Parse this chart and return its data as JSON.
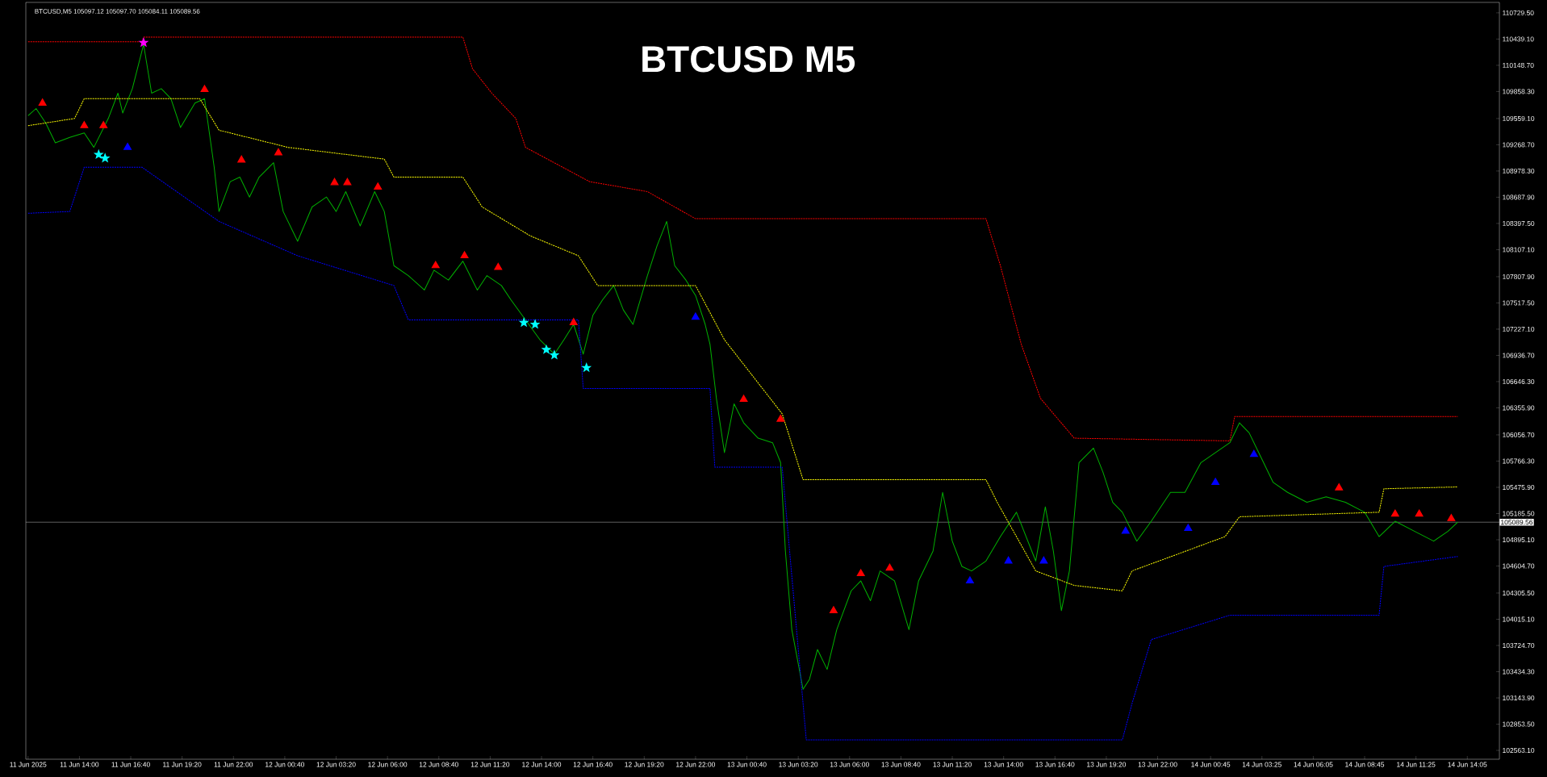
{
  "chart_data": {
    "type": "line",
    "title": "BTCUSD M5",
    "annotations": [
      "BTCUSD,M5  105097.12 105097.70 105084.11 105089.56"
    ],
    "xlim": [
      "2025-06-11T11:13",
      "2025-06-14T15:45"
    ],
    "ylim": [
      102465,
      110845
    ],
    "xticks": [
      {
        "value": "2025-06-11T11:20",
        "label": "11 Jun 2025"
      },
      {
        "value": "2025-06-11T14:00",
        "label": "11 Jun 14:00"
      },
      {
        "value": "2025-06-11T16:40",
        "label": "11 Jun 16:40"
      },
      {
        "value": "2025-06-11T19:20",
        "label": "11 Jun 19:20"
      },
      {
        "value": "2025-06-11T22:00",
        "label": "11 Jun 22:00"
      },
      {
        "value": "2025-06-12T00:40",
        "label": "12 Jun 00:40"
      },
      {
        "value": "2025-06-12T03:20",
        "label": "12 Jun 03:20"
      },
      {
        "value": "2025-06-12T06:00",
        "label": "12 Jun 06:00"
      },
      {
        "value": "2025-06-12T08:40",
        "label": "12 Jun 08:40"
      },
      {
        "value": "2025-06-12T11:20",
        "label": "12 Jun 11:20"
      },
      {
        "value": "2025-06-12T14:00",
        "label": "12 Jun 14:00"
      },
      {
        "value": "2025-06-12T16:40",
        "label": "12 Jun 16:40"
      },
      {
        "value": "2025-06-12T19:20",
        "label": "12 Jun 19:20"
      },
      {
        "value": "2025-06-12T22:00",
        "label": "12 Jun 22:00"
      },
      {
        "value": "2025-06-13T00:40",
        "label": "13 Jun 00:40"
      },
      {
        "value": "2025-06-13T03:20",
        "label": "13 Jun 03:20"
      },
      {
        "value": "2025-06-13T06:00",
        "label": "13 Jun 06:00"
      },
      {
        "value": "2025-06-13T08:40",
        "label": "13 Jun 08:40"
      },
      {
        "value": "2025-06-13T11:20",
        "label": "13 Jun 11:20"
      },
      {
        "value": "2025-06-13T14:00",
        "label": "13 Jun 14:00"
      },
      {
        "value": "2025-06-13T16:40",
        "label": "13 Jun 16:40"
      },
      {
        "value": "2025-06-13T19:20",
        "label": "13 Jun 19:20"
      },
      {
        "value": "2025-06-13T22:00",
        "label": "13 Jun 22:00"
      },
      {
        "value": "2025-06-14T00:45",
        "label": "14 Jun 00:45"
      },
      {
        "value": "2025-06-14T03:25",
        "label": "14 Jun 03:25"
      },
      {
        "value": "2025-06-14T06:05",
        "label": "14 Jun 06:05"
      },
      {
        "value": "2025-06-14T08:45",
        "label": "14 Jun 08:45"
      },
      {
        "value": "2025-06-14T11:25",
        "label": "14 Jun 11:25"
      },
      {
        "value": "2025-06-14T14:05",
        "label": "14 Jun 14:05"
      }
    ],
    "yticks": [
      {
        "value": 110729.5,
        "label": "110729.50"
      },
      {
        "value": 110439.1,
        "label": "110439.10"
      },
      {
        "value": 110148.7,
        "label": "110148.70"
      },
      {
        "value": 109858.3,
        "label": "109858.30"
      },
      {
        "value": 109559.1,
        "label": "109559.10"
      },
      {
        "value": 109268.7,
        "label": "109268.70"
      },
      {
        "value": 108978.3,
        "label": "108978.30"
      },
      {
        "value": 108687.9,
        "label": "108687.90"
      },
      {
        "value": 108397.5,
        "label": "108397.50"
      },
      {
        "value": 108107.1,
        "label": "108107.10"
      },
      {
        "value": 107807.9,
        "label": "107807.90"
      },
      {
        "value": 107517.5,
        "label": "107517.50"
      },
      {
        "value": 107227.1,
        "label": "107227.10"
      },
      {
        "value": 106936.7,
        "label": "106936.70"
      },
      {
        "value": 106646.3,
        "label": "106646.30"
      },
      {
        "value": 106355.9,
        "label": "106355.90"
      },
      {
        "value": 106056.7,
        "label": "106056.70"
      },
      {
        "value": 105766.3,
        "label": "105766.30"
      },
      {
        "value": 105475.9,
        "label": "105475.90"
      },
      {
        "value": 105185.5,
        "label": "105185.50"
      },
      {
        "value": 104895.1,
        "label": "104895.10"
      },
      {
        "value": 104604.7,
        "label": "104604.70"
      },
      {
        "value": 104305.5,
        "label": "104305.50"
      },
      {
        "value": 104015.1,
        "label": "104015.10"
      },
      {
        "value": 103724.7,
        "label": "103724.70"
      },
      {
        "value": 103434.3,
        "label": "103434.30"
      },
      {
        "value": 103143.9,
        "label": "103143.90"
      },
      {
        "value": 102853.5,
        "label": "102853.50"
      },
      {
        "value": 102563.1,
        "label": "102563.10"
      }
    ],
    "grid": false,
    "ref_lines": [
      {
        "axis": "y",
        "value": 105089.56,
        "label": "105089.56",
        "color": "#a0a0a0"
      }
    ],
    "series": [
      {
        "color": "#00b000",
        "line_style": "solid",
        "marker": "none",
        "x": [
          "2025-06-11T11:20",
          "2025-06-11T11:45",
          "2025-06-11T12:15",
          "2025-06-11T12:45",
          "2025-06-11T13:30",
          "2025-06-11T14:15",
          "2025-06-11T14:45",
          "2025-06-11T15:30",
          "2025-06-11T16:00",
          "2025-06-11T16:15",
          "2025-06-11T16:45",
          "2025-06-11T17:20",
          "2025-06-11T17:45",
          "2025-06-11T18:15",
          "2025-06-11T18:45",
          "2025-06-11T19:15",
          "2025-06-11T20:00",
          "2025-06-11T20:30",
          "2025-06-11T21:00",
          "2025-06-11T21:15",
          "2025-06-11T21:50",
          "2025-06-11T22:20",
          "2025-06-11T22:50",
          "2025-06-11T23:20",
          "2025-06-12T00:05",
          "2025-06-12T00:35",
          "2025-06-12T01:20",
          "2025-06-12T02:05",
          "2025-06-12T02:50",
          "2025-06-12T03:20",
          "2025-06-12T03:50",
          "2025-06-12T04:35",
          "2025-06-12T05:20",
          "2025-06-12T05:50",
          "2025-06-12T06:20",
          "2025-06-12T07:05",
          "2025-06-12T07:55",
          "2025-06-12T08:25",
          "2025-06-12T09:10",
          "2025-06-12T09:55",
          "2025-06-12T10:40",
          "2025-06-12T11:10",
          "2025-06-12T11:55",
          "2025-06-12T12:25",
          "2025-06-12T13:10",
          "2025-06-12T13:55",
          "2025-06-12T14:40",
          "2025-06-12T15:10",
          "2025-06-12T15:40",
          "2025-06-12T16:10",
          "2025-06-12T16:40",
          "2025-06-12T17:10",
          "2025-06-12T17:45",
          "2025-06-12T18:15",
          "2025-06-12T18:45",
          "2025-06-12T19:30",
          "2025-06-12T20:00",
          "2025-06-12T20:30",
          "2025-06-12T20:55",
          "2025-06-12T21:30",
          "2025-06-12T22:00",
          "2025-06-12T22:30",
          "2025-06-12T22:45",
          "2025-06-12T23:05",
          "2025-06-12T23:30",
          "2025-06-13T00:00",
          "2025-06-13T00:30",
          "2025-06-13T01:15",
          "2025-06-13T02:00",
          "2025-06-13T02:25",
          "2025-06-13T02:40",
          "2025-06-13T03:00",
          "2025-06-13T03:35",
          "2025-06-13T03:55",
          "2025-06-13T04:20",
          "2025-06-13T04:50",
          "2025-06-13T05:20",
          "2025-06-13T06:05",
          "2025-06-13T06:35",
          "2025-06-13T07:05",
          "2025-06-13T07:35",
          "2025-06-13T08:20",
          "2025-06-13T09:05",
          "2025-06-13T09:35",
          "2025-06-13T10:20",
          "2025-06-13T10:50",
          "2025-06-13T11:20",
          "2025-06-13T11:50",
          "2025-06-13T12:20",
          "2025-06-13T13:05",
          "2025-06-13T13:50",
          "2025-06-13T14:40",
          "2025-06-13T15:10",
          "2025-06-13T15:40",
          "2025-06-13T16:10",
          "2025-06-13T16:35",
          "2025-06-13T17:00",
          "2025-06-13T17:25",
          "2025-06-13T17:55",
          "2025-06-13T18:40",
          "2025-06-13T19:10",
          "2025-06-13T19:40",
          "2025-06-13T20:10",
          "2025-06-13T20:55",
          "2025-06-13T21:40",
          "2025-06-13T22:40",
          "2025-06-13T23:25",
          "2025-06-14T00:15",
          "2025-06-14T01:00",
          "2025-06-14T01:45",
          "2025-06-14T02:15",
          "2025-06-14T02:45",
          "2025-06-14T03:15",
          "2025-06-14T04:00",
          "2025-06-14T04:45",
          "2025-06-14T05:45",
          "2025-06-14T06:45",
          "2025-06-14T07:45",
          "2025-06-14T08:45",
          "2025-06-14T09:30",
          "2025-06-14T10:20",
          "2025-06-14T11:20",
          "2025-06-14T12:20",
          "2025-06-14T13:05",
          "2025-06-14T13:35"
        ],
        "values": [
          109590,
          109670,
          109510,
          109290,
          109350,
          109400,
          109240,
          109560,
          109840,
          109620,
          109890,
          110380,
          109840,
          109890,
          109780,
          109460,
          109730,
          109780,
          109020,
          108530,
          108860,
          108910,
          108690,
          108910,
          109070,
          108530,
          108200,
          108580,
          108690,
          108530,
          108750,
          108370,
          108750,
          108530,
          107930,
          107820,
          107660,
          107880,
          107770,
          107980,
          107660,
          107820,
          107710,
          107550,
          107330,
          107110,
          106950,
          107110,
          107280,
          106950,
          107380,
          107550,
          107710,
          107440,
          107280,
          107820,
          108150,
          108420,
          107930,
          107770,
          107600,
          107280,
          107060,
          106460,
          105860,
          106400,
          106190,
          106020,
          105970,
          105750,
          104770,
          103900,
          103240,
          103350,
          103680,
          103460,
          103900,
          104330,
          104440,
          104220,
          104550,
          104440,
          103900,
          104440,
          104770,
          105420,
          104880,
          104600,
          104550,
          104660,
          104930,
          105200,
          104930,
          104660,
          105260,
          104770,
          104110,
          104550,
          105750,
          105910,
          105640,
          105310,
          105200,
          104880,
          105100,
          105420,
          105420,
          105750,
          105860,
          105970,
          106190,
          106080,
          105860,
          105530,
          105420,
          105310,
          105370,
          105310,
          105200,
          104930,
          105100,
          104990,
          104880,
          104990,
          105090
        ]
      },
      {
        "type": "line",
        "color": "#ff0000",
        "line_style": "dotted",
        "marker": "none",
        "x": [
          "2025-06-11T11:20",
          "2025-06-11T17:15",
          "2025-06-11T17:20",
          "2025-06-12T09:55",
          "2025-06-12T10:25",
          "2025-06-12T11:25",
          "2025-06-12T12:40",
          "2025-06-12T13:10",
          "2025-06-12T16:30",
          "2025-06-12T19:30",
          "2025-06-12T22:00",
          "2025-06-13T13:05",
          "2025-06-13T13:50",
          "2025-06-13T14:55",
          "2025-06-13T15:55",
          "2025-06-13T17:40",
          "2025-06-14T01:45",
          "2025-06-14T02:00",
          "2025-06-14T13:35"
        ],
        "values": [
          110410,
          110410,
          110460,
          110460,
          110110,
          109840,
          109560,
          109240,
          108860,
          108750,
          108450,
          108450,
          107930,
          107060,
          106460,
          106020,
          105990,
          106260,
          106260
        ]
      },
      {
        "type": "line",
        "color": "#ffff00",
        "line_style": "dotted",
        "marker": "none",
        "x": [
          "2025-06-11T11:20",
          "2025-06-11T13:45",
          "2025-06-11T14:15",
          "2025-06-11T20:15",
          "2025-06-11T21:15",
          "2025-06-12T00:50",
          "2025-06-12T05:50",
          "2025-06-12T06:20",
          "2025-06-12T09:55",
          "2025-06-12T10:55",
          "2025-06-12T13:25",
          "2025-06-12T15:55",
          "2025-06-12T16:55",
          "2025-06-12T22:00",
          "2025-06-12T23:30",
          "2025-06-13T02:30",
          "2025-06-13T03:35",
          "2025-06-13T13:05",
          "2025-06-13T13:40",
          "2025-06-13T15:40",
          "2025-06-13T17:40",
          "2025-06-13T20:10",
          "2025-06-13T20:40",
          "2025-06-14T01:30",
          "2025-06-14T02:15",
          "2025-06-14T09:30",
          "2025-06-14T09:45",
          "2025-06-14T13:35"
        ],
        "values": [
          109480,
          109560,
          109780,
          109780,
          109430,
          109240,
          109110,
          108910,
          108910,
          108580,
          108260,
          108040,
          107710,
          107710,
          107110,
          106290,
          105560,
          105560,
          105310,
          104550,
          104390,
          104330,
          104550,
          104930,
          105150,
          105200,
          105460,
          105480
        ]
      },
      {
        "type": "line",
        "color": "#0000ff",
        "line_style": "dotted",
        "marker": "none",
        "x": [
          "2025-06-11T11:20",
          "2025-06-11T13:30",
          "2025-06-11T14:15",
          "2025-06-11T17:15",
          "2025-06-11T21:15",
          "2025-06-12T01:20",
          "2025-06-12T06:20",
          "2025-06-12T07:05",
          "2025-06-12T15:55",
          "2025-06-12T16:10",
          "2025-06-12T22:45",
          "2025-06-12T23:00",
          "2025-06-13T02:30",
          "2025-06-13T03:45",
          "2025-06-13T20:10",
          "2025-06-13T20:40",
          "2025-06-13T21:40",
          "2025-06-14T01:45",
          "2025-06-14T09:30",
          "2025-06-14T09:45",
          "2025-06-14T13:35"
        ],
        "values": [
          108510,
          108530,
          109020,
          109020,
          108420,
          108040,
          107710,
          107330,
          107330,
          106570,
          106570,
          105700,
          105700,
          102680,
          102680,
          103080,
          103790,
          104060,
          104060,
          104600,
          104710
        ]
      },
      {
        "type": "scatter",
        "color": "#ff0000",
        "marker": "triangle",
        "x": [
          "2025-06-11T12:05",
          "2025-06-11T14:15",
          "2025-06-11T15:15",
          "2025-06-11T20:30",
          "2025-06-11T22:25",
          "2025-06-12T00:20",
          "2025-06-12T03:15",
          "2025-06-12T03:55",
          "2025-06-12T05:30",
          "2025-06-12T08:30",
          "2025-06-12T10:00",
          "2025-06-12T11:45",
          "2025-06-12T15:40",
          "2025-06-13T00:30",
          "2025-06-13T02:25",
          "2025-06-13T05:10",
          "2025-06-13T06:35",
          "2025-06-13T08:05",
          "2025-06-14T07:25",
          "2025-06-14T10:20",
          "2025-06-14T11:35",
          "2025-06-14T13:15"
        ],
        "values": [
          109730,
          109480,
          109480,
          109880,
          109100,
          109180,
          108850,
          108850,
          108800,
          107930,
          108040,
          107910,
          107300,
          106450,
          106230,
          104110,
          104520,
          104580,
          105470,
          105180,
          105180,
          105130
        ]
      },
      {
        "type": "scatter",
        "color": "#0000ff",
        "marker": "triangle",
        "x": [
          "2025-06-11T16:30",
          "2025-06-12T22:00",
          "2025-06-13T12:15",
          "2025-06-13T14:15",
          "2025-06-13T16:05",
          "2025-06-13T20:20",
          "2025-06-13T23:35",
          "2025-06-14T01:00",
          "2025-06-14T03:00"
        ],
        "values": [
          109240,
          107360,
          104440,
          104660,
          104660,
          104990,
          105020,
          105530,
          105840
        ]
      },
      {
        "type": "scatter",
        "color": "#00ffff",
        "marker": "star",
        "x": [
          "2025-06-11T15:00",
          "2025-06-11T15:20",
          "2025-06-12T13:05",
          "2025-06-12T13:40",
          "2025-06-12T14:15",
          "2025-06-12T14:40",
          "2025-06-12T16:20"
        ],
        "values": [
          109160,
          109120,
          107300,
          107280,
          107000,
          106940,
          106800
        ]
      },
      {
        "type": "scatter",
        "color": "#ff00ff",
        "marker": "star",
        "x": [
          "2025-06-11T17:20"
        ],
        "values": [
          110400
        ]
      }
    ]
  }
}
